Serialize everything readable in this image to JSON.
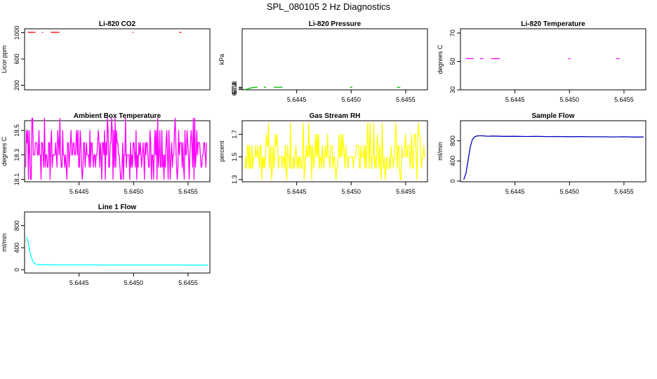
{
  "figure_title": "SPL_080105  2 Hz Diagnostics",
  "chart_data": [
    {
      "type": "line",
      "title": "Li-820 CO2",
      "ylabel": "Licor ppm",
      "xlabel": "",
      "color": "#ff0000",
      "xlim": [
        5.644,
        5.6457
      ],
      "ylim": [
        130,
        1060
      ],
      "xticks": [],
      "xtick_labels": [],
      "yticks": [
        200,
        600,
        1000
      ],
      "ytick_labels": [
        "200",
        "600",
        "1000"
      ],
      "segments": [
        {
          "x": [
            5.64403,
            5.6441
          ],
          "y": [
            1005,
            1005
          ]
        },
        {
          "x": [
            5.64416,
            5.64417
          ],
          "y": [
            1005,
            1005
          ]
        },
        {
          "x": [
            5.64424,
            5.64432
          ],
          "y": [
            1005,
            1005
          ]
        },
        {
          "x": [
            5.64499,
            5.645
          ],
          "y": [
            1005,
            1005
          ]
        },
        {
          "x": [
            5.64542,
            5.64544
          ],
          "y": [
            1005,
            1005
          ]
        }
      ]
    },
    {
      "type": "line",
      "title": "Li-820 Pressure",
      "ylabel": "kPa",
      "xlabel": "",
      "color": "#00bb00",
      "xlim": [
        5.644,
        5.6457
      ],
      "ylim": [
        66.92,
        87.9
      ],
      "xticks": [
        5.6445,
        5.645,
        5.6455
      ],
      "xtick_labels": [
        "5.6445",
        "5.6450",
        "5.6455"
      ],
      "yticks": [
        67.0,
        67.4,
        67.8
      ],
      "ytick_labels": [
        "67.0",
        "67.4",
        "67.8"
      ],
      "segments": [
        {
          "x": [
            5.64402,
            5.64403,
            5.64404,
            5.64405,
            5.64406,
            5.64407,
            5.64408,
            5.64409,
            5.6441,
            5.64411,
            5.64412,
            5.64413,
            5.64414
          ],
          "y": [
            66.95,
            67.02,
            67.12,
            67.24,
            67.36,
            67.47,
            67.56,
            67.64,
            67.7,
            67.75,
            67.78,
            67.8,
            67.81
          ]
        },
        {
          "x": [
            5.6442,
            5.64422
          ],
          "y": [
            67.82,
            67.82
          ]
        },
        {
          "x": [
            5.64429,
            5.64437
          ],
          "y": [
            67.81,
            67.81
          ]
        },
        {
          "x": [
            5.64499,
            5.64501
          ],
          "y": [
            67.8,
            67.8
          ]
        },
        {
          "x": [
            5.64542,
            5.64545
          ],
          "y": [
            67.79,
            67.79
          ]
        }
      ]
    },
    {
      "type": "line",
      "title": "Li-820 Temperature",
      "ylabel": "degrees C",
      "xlabel": "",
      "color": "#ff00ff",
      "xlim": [
        5.644,
        5.6457
      ],
      "ylim": [
        30,
        73
      ],
      "xticks": [
        5.6445,
        5.645,
        5.6455
      ],
      "xtick_labels": [
        "5.6445",
        "5.6450",
        "5.6455"
      ],
      "yticks": [
        30,
        50,
        70
      ],
      "ytick_labels": [
        "30",
        "50",
        "70"
      ],
      "segments": [
        {
          "x": [
            5.64405,
            5.64412
          ],
          "y": [
            52,
            52
          ]
        },
        {
          "x": [
            5.64418,
            5.64421
          ],
          "y": [
            52,
            52
          ]
        },
        {
          "x": [
            5.64428,
            5.64436
          ],
          "y": [
            52,
            52
          ]
        },
        {
          "x": [
            5.64499,
            5.64501
          ],
          "y": [
            52,
            52
          ]
        },
        {
          "x": [
            5.64543,
            5.64546
          ],
          "y": [
            52,
            52
          ]
        }
      ]
    },
    {
      "type": "line",
      "title": "Ambient Box Temperature",
      "ylabel": "degrees C",
      "xlabel": "",
      "color": "#ff00ff",
      "xlim": [
        5.644,
        5.6457
      ],
      "ylim": [
        18.08,
        18.58
      ],
      "xticks": [
        5.6445,
        5.645,
        5.6455
      ],
      "xtick_labels": [
        "5.6445",
        "5.6450",
        "5.6455"
      ],
      "yticks": [
        18.1,
        18.3,
        18.5
      ],
      "ytick_labels": [
        "18.1",
        "18.3",
        "18.5"
      ],
      "noise": {
        "x_start": 5.64401,
        "x_end": 5.64567,
        "points": 260,
        "levels": [
          18.1,
          18.2,
          18.3,
          18.4,
          18.5,
          18.6
        ],
        "weights": [
          0.1,
          0.2,
          0.3,
          0.25,
          0.12,
          0.03
        ],
        "seed": 7
      }
    },
    {
      "type": "line",
      "title": "Gas Stream RH",
      "ylabel": "percent",
      "xlabel": "",
      "color": "#ffff00",
      "xlim": [
        5.644,
        5.6457
      ],
      "ylim": [
        1.28,
        1.82
      ],
      "xticks": [
        5.6445,
        5.645,
        5.6455
      ],
      "xtick_labels": [
        "5.6445",
        "5.6450",
        "5.6455"
      ],
      "yticks": [
        1.3,
        1.5,
        1.7
      ],
      "ytick_labels": [
        "1.3",
        "1.5",
        "1.7"
      ],
      "noise": {
        "x_start": 5.64402,
        "x_end": 5.64568,
        "points": 240,
        "levels": [
          1.3,
          1.4,
          1.5,
          1.6,
          1.7,
          1.8
        ],
        "weights": [
          0.04,
          0.24,
          0.36,
          0.22,
          0.1,
          0.04
        ],
        "seed": 11
      }
    },
    {
      "type": "line",
      "title": "Sample Flow",
      "ylabel": "ml/min",
      "xlabel": "",
      "color": "#0000bb",
      "xlim": [
        5.644,
        5.6457
      ],
      "ylim": [
        -15,
        1200
      ],
      "xticks": [
        5.6445,
        5.645,
        5.6455
      ],
      "xtick_labels": [
        "5.6445",
        "5.6450",
        "5.6455"
      ],
      "yticks": [
        0,
        400,
        800
      ],
      "ytick_labels": [
        "0",
        "400",
        "800"
      ],
      "segments": [
        {
          "x": [
            5.64403,
            5.64405,
            5.64407,
            5.64409,
            5.64411,
            5.64413,
            5.64415,
            5.64417,
            5.6442,
            5.64425,
            5.6443,
            5.6444,
            5.6445,
            5.6446,
            5.6447,
            5.6448,
            5.6449,
            5.645,
            5.6451,
            5.6452,
            5.6453,
            5.6454,
            5.6455,
            5.6456,
            5.64568
          ],
          "y": [
            30,
            150,
            420,
            680,
            830,
            880,
            895,
            900,
            900,
            892,
            895,
            888,
            890,
            886,
            888,
            884,
            886,
            882,
            884,
            880,
            880,
            878,
            880,
            875,
            876
          ]
        }
      ]
    },
    {
      "type": "line",
      "title": "Line 1 Flow",
      "ylabel": "ml/min",
      "xlabel": "",
      "color": "#00ffff",
      "xlim": [
        5.644,
        5.6457
      ],
      "ylim": [
        -60,
        1050
      ],
      "xticks": [
        5.6445,
        5.645,
        5.6455
      ],
      "xtick_labels": [
        "5.6445",
        "5.6450",
        "5.6455"
      ],
      "yticks": [
        0,
        400,
        800
      ],
      "ytick_labels": [
        "0",
        "400",
        "800"
      ],
      "segments": [
        {
          "x": [
            5.64402,
            5.64403,
            5.64404,
            5.64405,
            5.64406,
            5.64407,
            5.64408,
            5.64409,
            5.64411,
            5.64413,
            5.64416,
            5.6442,
            5.6443,
            5.6445,
            5.6448,
            5.645,
            5.6453,
            5.64568
          ],
          "y": [
            600,
            520,
            420,
            320,
            240,
            180,
            140,
            115,
            98,
            92,
            90,
            90,
            88,
            88,
            86,
            86,
            85,
            84
          ]
        }
      ]
    }
  ]
}
